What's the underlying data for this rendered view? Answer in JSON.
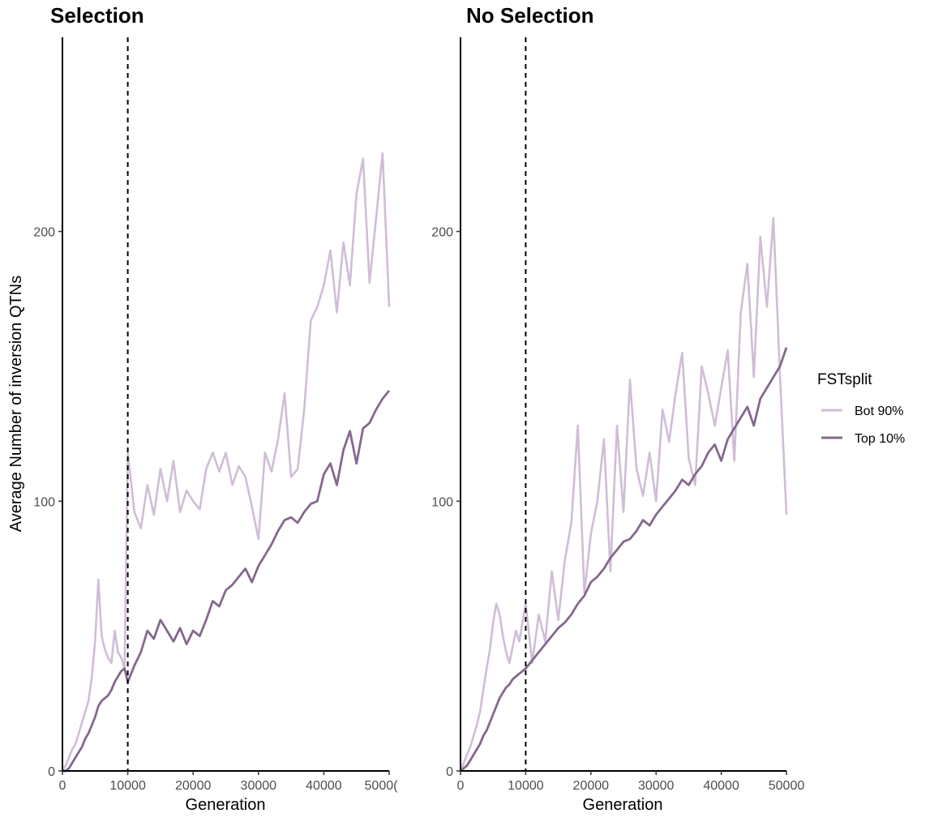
{
  "ylabel": "Average Number of inversion QTNs",
  "legend": {
    "title": "FSTsplit",
    "placement": "right",
    "entries": [
      {
        "label": "Bot 90%",
        "color": "#d0bdd6"
      },
      {
        "label": "Top 10%",
        "color": "#85688d"
      }
    ]
  },
  "colors": {
    "bot": "#d0bdd6",
    "top": "#85688d",
    "axis": "#000000"
  },
  "chart_data": [
    {
      "type": "line",
      "title": "Selection",
      "xlabel": "Generation",
      "ylabel": "Average Number of inversion QTNs",
      "xlim": [
        0,
        50000
      ],
      "ylim": [
        0,
        272
      ],
      "xticks": [
        "0",
        "10000",
        "20000",
        "30000",
        "40000",
        "5000("
      ],
      "yticks": [
        "0",
        "100",
        "200"
      ],
      "vline_x": 10000,
      "grid": false,
      "x": [
        500,
        1000,
        1500,
        2000,
        2500,
        3000,
        3500,
        4000,
        4500,
        5000,
        5500,
        6000,
        6500,
        7000,
        7500,
        8000,
        8500,
        9000,
        9500,
        10000,
        11000,
        12000,
        13000,
        14000,
        15000,
        16000,
        17000,
        18000,
        19000,
        20000,
        21000,
        22000,
        23000,
        24000,
        25000,
        26000,
        27000,
        28000,
        29000,
        30000,
        31000,
        32000,
        33000,
        34000,
        35000,
        36000,
        37000,
        38000,
        39000,
        40000,
        41000,
        42000,
        43000,
        44000,
        45000,
        46000,
        47000,
        48000,
        49000,
        50000
      ],
      "series": [
        {
          "name": "Bot 90%",
          "values": [
            2,
            5,
            8,
            10,
            14,
            18,
            22,
            26,
            35,
            48,
            71,
            50,
            45,
            42,
            40,
            52,
            44,
            42,
            38,
            118,
            96,
            90,
            106,
            95,
            112,
            100,
            115,
            96,
            104,
            100,
            97,
            112,
            118,
            111,
            118,
            106,
            113,
            109,
            98,
            86,
            118,
            111,
            123,
            140,
            109,
            112,
            134,
            167,
            172,
            180,
            193,
            170,
            196,
            180,
            214,
            227,
            181,
            205,
            229,
            172
          ]
        },
        {
          "name": "Top 10%",
          "values": [
            0,
            1,
            3,
            5,
            7,
            9,
            12,
            14,
            17,
            20,
            24,
            26,
            27,
            28,
            30,
            33,
            35,
            37,
            38,
            33,
            39,
            44,
            52,
            49,
            56,
            52,
            48,
            53,
            47,
            52,
            50,
            56,
            63,
            61,
            67,
            69,
            72,
            75,
            70,
            76,
            80,
            84,
            89,
            93,
            94,
            92,
            96,
            99,
            100,
            110,
            114,
            106,
            119,
            126,
            114,
            127,
            129,
            134,
            138,
            141
          ]
        }
      ]
    },
    {
      "type": "line",
      "title": "No Selection",
      "xlabel": "Generation",
      "ylabel": "",
      "xlim": [
        0,
        50000
      ],
      "ylim": [
        0,
        272
      ],
      "xticks": [
        "0",
        "10000",
        "20000",
        "30000",
        "40000",
        "50000"
      ],
      "yticks": [
        "0",
        "100",
        "200"
      ],
      "vline_x": 10000,
      "grid": false,
      "x": [
        500,
        1000,
        1500,
        2000,
        2500,
        3000,
        3500,
        4000,
        4500,
        5000,
        5500,
        6000,
        6500,
        7000,
        7500,
        8000,
        8500,
        9000,
        9500,
        10000,
        11000,
        12000,
        13000,
        14000,
        15000,
        16000,
        17000,
        18000,
        19000,
        20000,
        21000,
        22000,
        23000,
        24000,
        25000,
        26000,
        27000,
        28000,
        29000,
        30000,
        31000,
        32000,
        33000,
        34000,
        35000,
        36000,
        37000,
        38000,
        39000,
        40000,
        41000,
        42000,
        43000,
        44000,
        45000,
        46000,
        47000,
        48000,
        49000,
        50000
      ],
      "series": [
        {
          "name": "Bot 90%",
          "values": [
            3,
            6,
            9,
            13,
            17,
            22,
            30,
            38,
            45,
            55,
            62,
            58,
            50,
            44,
            40,
            46,
            52,
            48,
            55,
            62,
            40,
            58,
            48,
            74,
            56,
            78,
            92,
            128,
            66,
            88,
            100,
            123,
            74,
            128,
            96,
            145,
            112,
            102,
            118,
            100,
            134,
            122,
            140,
            155,
            116,
            106,
            150,
            140,
            128,
            142,
            156,
            115,
            170,
            188,
            146,
            198,
            172,
            205,
            147,
            95
          ]
        },
        {
          "name": "Top 10%",
          "values": [
            1,
            2,
            4,
            6,
            8,
            10,
            13,
            15,
            18,
            21,
            24,
            27,
            29,
            31,
            32,
            34,
            35,
            36,
            37,
            38,
            41,
            44,
            47,
            50,
            53,
            55,
            58,
            62,
            65,
            70,
            72,
            75,
            79,
            82,
            85,
            86,
            89,
            93,
            91,
            95,
            98,
            101,
            104,
            108,
            106,
            110,
            113,
            118,
            121,
            115,
            123,
            127,
            131,
            135,
            128,
            138,
            142,
            146,
            150,
            157
          ]
        }
      ]
    }
  ]
}
